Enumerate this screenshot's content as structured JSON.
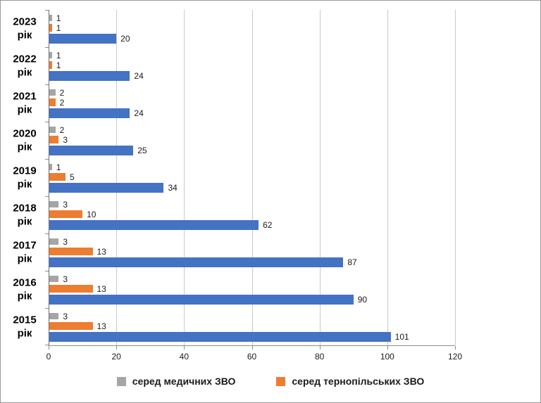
{
  "chart_data": {
    "type": "bar",
    "orientation": "horizontal",
    "title": "",
    "categories": [
      "2023 рік",
      "2022 рік",
      "2021 рік",
      "2020 рік",
      "2019 рік",
      "2018 рік",
      "2017 рік",
      "2016 рік",
      "2015 рік"
    ],
    "series": [
      {
        "key": "medical-zvo",
        "name": "серед медичних ЗВО",
        "color": "#A5A5A5",
        "values": [
          1,
          1,
          2,
          2,
          1,
          3,
          3,
          3,
          3
        ]
      },
      {
        "key": "ternopil-zvo",
        "name": "серед тернопільських ЗВО",
        "color": "#ED7D31",
        "values": [
          1,
          1,
          2,
          3,
          5,
          10,
          13,
          13,
          13
        ]
      },
      {
        "key": "blue-series",
        "name": "",
        "color": "#4472C4",
        "values": [
          20,
          24,
          24,
          25,
          34,
          62,
          87,
          90,
          101
        ]
      }
    ],
    "xlim": [
      0,
      120
    ],
    "xticks": [
      0,
      20,
      40,
      60,
      80,
      100,
      120
    ],
    "grid": true,
    "legend_position": "bottom",
    "legend": [
      {
        "label": "серед медичних ЗВО",
        "color": "#A5A5A5"
      },
      {
        "label": "серед тернопільських ЗВО",
        "color": "#ED7D31"
      }
    ]
  },
  "colors": {
    "gridline": "#C9C9C9",
    "axis": "#8C8C8C",
    "text": "#000000"
  }
}
